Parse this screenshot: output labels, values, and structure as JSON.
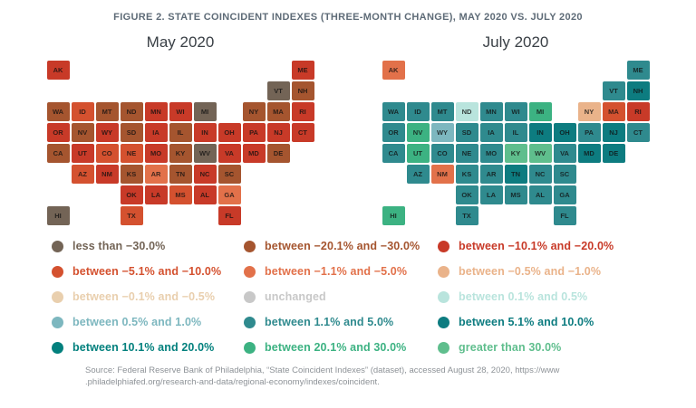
{
  "figure": {
    "title": "FIGURE 2. STATE COINCIDENT INDEXES (THREE-MONTH CHANGE), MAY 2020 VS. JULY 2020"
  },
  "chart_data": {
    "type": "heatmap",
    "subtype": "us-state-choropleth-pair",
    "legend_position": "bottom",
    "categories": [
      {
        "id": "lt_n30",
        "label": "less than −30.0%",
        "color": "#736456"
      },
      {
        "id": "n20_n30",
        "label": "between −20.1% and −30.0%",
        "color": "#a5552f"
      },
      {
        "id": "n10_n20",
        "label": "between −10.1% and −20.0%",
        "color": "#c83a28"
      },
      {
        "id": "n5_n10",
        "label": "between −5.1% and −10.0%",
        "color": "#d4512f"
      },
      {
        "id": "n1_n5",
        "label": "between −1.1% and −5.0%",
        "color": "#e2714a"
      },
      {
        "id": "n05_n1",
        "label": "between −0.5% and −1.0%",
        "color": "#eab38a"
      },
      {
        "id": "n01_n05",
        "label": "between −0.1% and −0.5%",
        "color": "#e9cfae"
      },
      {
        "id": "unchanged",
        "label": "unchanged",
        "color": "#c8c8c8"
      },
      {
        "id": "p01_p05",
        "label": "between 0.1% and 0.5%",
        "color": "#b9e4dd"
      },
      {
        "id": "p05_p1",
        "label": "between 0.5% and 1.0%",
        "color": "#7db7bf"
      },
      {
        "id": "p1_p5",
        "label": "between 1.1% and 5.0%",
        "color": "#2f8a8e"
      },
      {
        "id": "p5_p10",
        "label": "between 5.1% and 10.0%",
        "color": "#0d7c80"
      },
      {
        "id": "p10_p20",
        "label": "between 10.1% and 20.0%",
        "color": "#02807d"
      },
      {
        "id": "p20_p30",
        "label": "between 20.1% and 30.0%",
        "color": "#3cb282"
      },
      {
        "id": "gt_p30",
        "label": "greater than 30.0%",
        "color": "#5fbe8d"
      }
    ],
    "panels": [
      {
        "title": "May 2020",
        "states": [
          {
            "abbr": "AK",
            "category": "n10_n20"
          },
          {
            "abbr": "AL",
            "category": "n10_n20"
          },
          {
            "abbr": "AR",
            "category": "n1_n5"
          },
          {
            "abbr": "AZ",
            "category": "n5_n10"
          },
          {
            "abbr": "CA",
            "category": "n20_n30"
          },
          {
            "abbr": "CO",
            "category": "n5_n10"
          },
          {
            "abbr": "CT",
            "category": "n10_n20"
          },
          {
            "abbr": "DE",
            "category": "n20_n30"
          },
          {
            "abbr": "FL",
            "category": "n10_n20"
          },
          {
            "abbr": "GA",
            "category": "n1_n5"
          },
          {
            "abbr": "HI",
            "category": "lt_n30"
          },
          {
            "abbr": "IA",
            "category": "n10_n20"
          },
          {
            "abbr": "ID",
            "category": "n5_n10"
          },
          {
            "abbr": "IL",
            "category": "n20_n30"
          },
          {
            "abbr": "IN",
            "category": "n10_n20"
          },
          {
            "abbr": "KS",
            "category": "n20_n30"
          },
          {
            "abbr": "KY",
            "category": "n20_n30"
          },
          {
            "abbr": "LA",
            "category": "n10_n20"
          },
          {
            "abbr": "MA",
            "category": "n20_n30"
          },
          {
            "abbr": "MD",
            "category": "n10_n20"
          },
          {
            "abbr": "ME",
            "category": "n10_n20"
          },
          {
            "abbr": "MI",
            "category": "lt_n30"
          },
          {
            "abbr": "MN",
            "category": "n10_n20"
          },
          {
            "abbr": "MO",
            "category": "n10_n20"
          },
          {
            "abbr": "MS",
            "category": "n5_n10"
          },
          {
            "abbr": "MT",
            "category": "n20_n30"
          },
          {
            "abbr": "NC",
            "category": "n10_n20"
          },
          {
            "abbr": "ND",
            "category": "n20_n30"
          },
          {
            "abbr": "NE",
            "category": "n5_n10"
          },
          {
            "abbr": "NH",
            "category": "n20_n30"
          },
          {
            "abbr": "NJ",
            "category": "n10_n20"
          },
          {
            "abbr": "NM",
            "category": "n10_n20"
          },
          {
            "abbr": "NV",
            "category": "n20_n30"
          },
          {
            "abbr": "NY",
            "category": "n20_n30"
          },
          {
            "abbr": "OH",
            "category": "n10_n20"
          },
          {
            "abbr": "OK",
            "category": "n10_n20"
          },
          {
            "abbr": "OR",
            "category": "n10_n20"
          },
          {
            "abbr": "PA",
            "category": "n10_n20"
          },
          {
            "abbr": "RI",
            "category": "n10_n20"
          },
          {
            "abbr": "SC",
            "category": "n20_n30"
          },
          {
            "abbr": "SD",
            "category": "n20_n30"
          },
          {
            "abbr": "TN",
            "category": "n20_n30"
          },
          {
            "abbr": "TX",
            "category": "n5_n10"
          },
          {
            "abbr": "UT",
            "category": "n10_n20"
          },
          {
            "abbr": "VA",
            "category": "n10_n20"
          },
          {
            "abbr": "VT",
            "category": "lt_n30"
          },
          {
            "abbr": "WA",
            "category": "n20_n30"
          },
          {
            "abbr": "WI",
            "category": "n10_n20"
          },
          {
            "abbr": "WV",
            "category": "lt_n30"
          },
          {
            "abbr": "WY",
            "category": "n10_n20"
          }
        ]
      },
      {
        "title": "July 2020",
        "states": [
          {
            "abbr": "AK",
            "category": "n1_n5"
          },
          {
            "abbr": "AL",
            "category": "p1_p5"
          },
          {
            "abbr": "AR",
            "category": "p1_p5"
          },
          {
            "abbr": "AZ",
            "category": "p1_p5"
          },
          {
            "abbr": "CA",
            "category": "p1_p5"
          },
          {
            "abbr": "CO",
            "category": "p1_p5"
          },
          {
            "abbr": "CT",
            "category": "p1_p5"
          },
          {
            "abbr": "DE",
            "category": "p5_p10"
          },
          {
            "abbr": "FL",
            "category": "p1_p5"
          },
          {
            "abbr": "GA",
            "category": "p1_p5"
          },
          {
            "abbr": "HI",
            "category": "p20_p30"
          },
          {
            "abbr": "IA",
            "category": "p1_p5"
          },
          {
            "abbr": "ID",
            "category": "p1_p5"
          },
          {
            "abbr": "IL",
            "category": "p1_p5"
          },
          {
            "abbr": "IN",
            "category": "p5_p10"
          },
          {
            "abbr": "KS",
            "category": "p1_p5"
          },
          {
            "abbr": "KY",
            "category": "gt_p30"
          },
          {
            "abbr": "LA",
            "category": "p1_p5"
          },
          {
            "abbr": "MA",
            "category": "n5_n10"
          },
          {
            "abbr": "MD",
            "category": "p5_p10"
          },
          {
            "abbr": "ME",
            "category": "p1_p5"
          },
          {
            "abbr": "MI",
            "category": "p20_p30"
          },
          {
            "abbr": "MN",
            "category": "p1_p5"
          },
          {
            "abbr": "MO",
            "category": "p1_p5"
          },
          {
            "abbr": "MS",
            "category": "p1_p5"
          },
          {
            "abbr": "MT",
            "category": "p1_p5"
          },
          {
            "abbr": "NC",
            "category": "p1_p5"
          },
          {
            "abbr": "ND",
            "category": "p01_p05"
          },
          {
            "abbr": "NE",
            "category": "p1_p5"
          },
          {
            "abbr": "NH",
            "category": "p5_p10"
          },
          {
            "abbr": "NJ",
            "category": "p5_p10"
          },
          {
            "abbr": "NM",
            "category": "n1_n5"
          },
          {
            "abbr": "NV",
            "category": "p20_p30"
          },
          {
            "abbr": "NY",
            "category": "n05_n1"
          },
          {
            "abbr": "OH",
            "category": "p5_p10"
          },
          {
            "abbr": "OK",
            "category": "p1_p5"
          },
          {
            "abbr": "OR",
            "category": "p1_p5"
          },
          {
            "abbr": "PA",
            "category": "p1_p5"
          },
          {
            "abbr": "RI",
            "category": "n10_n20"
          },
          {
            "abbr": "SC",
            "category": "p1_p5"
          },
          {
            "abbr": "SD",
            "category": "p1_p5"
          },
          {
            "abbr": "TN",
            "category": "p5_p10"
          },
          {
            "abbr": "TX",
            "category": "p1_p5"
          },
          {
            "abbr": "UT",
            "category": "p20_p30"
          },
          {
            "abbr": "VA",
            "category": "p1_p5"
          },
          {
            "abbr": "VT",
            "category": "p1_p5"
          },
          {
            "abbr": "WA",
            "category": "p1_p5"
          },
          {
            "abbr": "WI",
            "category": "p1_p5"
          },
          {
            "abbr": "WV",
            "category": "gt_p30"
          },
          {
            "abbr": "WY",
            "category": "p05_p1"
          }
        ]
      }
    ]
  },
  "source": {
    "line1": "Source: Federal Reserve Bank of Philadelphia, “State Coincident Indexes” (dataset), accessed August 28, 2020, https://www",
    "line2": ".philadelphiafed.org/research-and-data/regional-economy/indexes/coincident."
  }
}
